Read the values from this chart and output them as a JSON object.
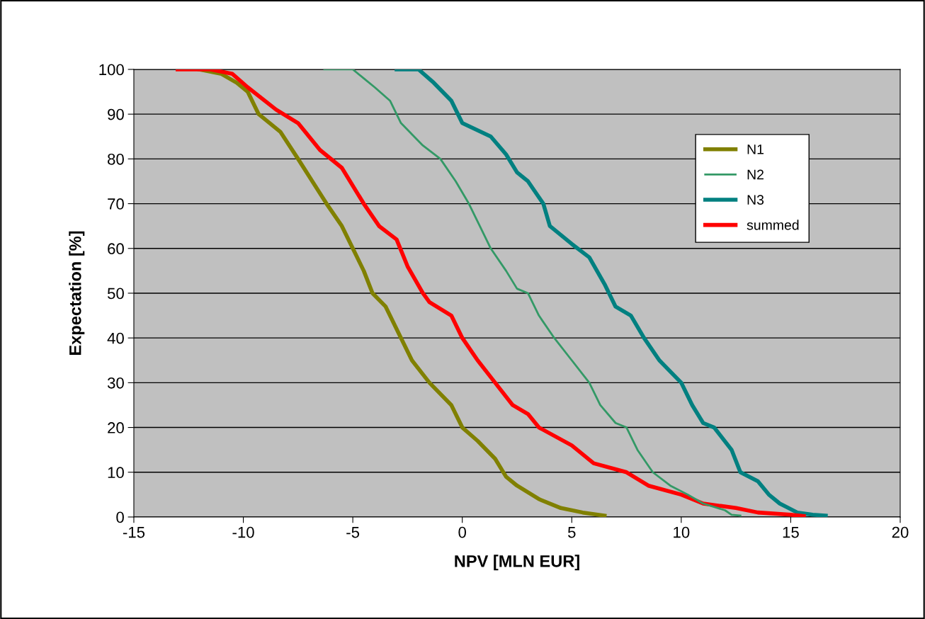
{
  "chart_data": {
    "type": "line",
    "xlabel": "NPV [MLN EUR]",
    "ylabel": "Expectation [%]",
    "xlim": [
      -15,
      20
    ],
    "xticks": [
      -15,
      -10,
      -5,
      0,
      5,
      10,
      15,
      20
    ],
    "ylim": [
      0,
      100
    ],
    "yticks": [
      0,
      10,
      20,
      30,
      40,
      50,
      60,
      70,
      80,
      90,
      100
    ],
    "grid": "y",
    "legend": "top right",
    "marker": "none",
    "line_style": "solid",
    "series": [
      {
        "name": "N1",
        "color": "#808000",
        "x": [
          -12,
          -11,
          -10.3,
          -9.8,
          -9.3,
          -8.3,
          -7.5,
          -6.2,
          -5.5,
          -5,
          -4.5,
          -4.1,
          -3.5,
          -2.8,
          -2.3,
          -1.5,
          -0.5,
          0,
          0.7,
          1.5,
          2,
          2.5,
          3.5,
          4.5,
          5.5,
          6.5
        ],
        "values": [
          100,
          99,
          97,
          95,
          90,
          86,
          80,
          70,
          65,
          60,
          55,
          50,
          47,
          40,
          35,
          30,
          25,
          20,
          17,
          13,
          9,
          7,
          4,
          2,
          1,
          0.3
        ]
      },
      {
        "name": "N2",
        "color": "#339966",
        "x": [
          -6.3,
          -5,
          -4.5,
          -4,
          -3.3,
          -2.8,
          -1.8,
          -1,
          -0.3,
          0.3,
          0.8,
          1.3,
          2,
          2.5,
          3,
          3.5,
          4.2,
          5,
          5.8,
          6.3,
          7,
          7.5,
          8,
          8.7,
          9.5,
          10.3,
          11,
          12,
          12.3,
          12.7
        ],
        "values": [
          100,
          100,
          98,
          96,
          93,
          88,
          83,
          80,
          75,
          70,
          65,
          60,
          55,
          51,
          50,
          45,
          40,
          35,
          30,
          25,
          21,
          20,
          15,
          10,
          7,
          5,
          3,
          1.5,
          0.5,
          0.3
        ]
      },
      {
        "name": "N3",
        "color": "#008080",
        "x": [
          -3,
          -2,
          -1.3,
          -0.5,
          0,
          1.3,
          2,
          2.5,
          3,
          3.7,
          4,
          5,
          5.8,
          6.5,
          7,
          7.7,
          8.3,
          9,
          10,
          10.5,
          11,
          11.5,
          12.3,
          12.7,
          13.5,
          14,
          14.5,
          15.3,
          16,
          16.6
        ],
        "values": [
          100,
          100,
          97,
          93,
          88,
          85,
          81,
          77,
          75,
          70,
          65,
          61,
          58,
          52,
          47,
          45,
          40,
          35,
          30,
          25,
          21,
          20,
          15,
          10,
          8,
          5,
          3,
          1,
          0.5,
          0.3
        ]
      },
      {
        "name": "summed",
        "color": "#ff0000",
        "x": [
          -13,
          -11.5,
          -10.5,
          -9.8,
          -8.5,
          -7.5,
          -6.5,
          -5.5,
          -4.5,
          -3.8,
          -3,
          -2.5,
          -1.8,
          -1.5,
          -0.5,
          0,
          0.7,
          1.5,
          2.3,
          3,
          3.5,
          5,
          6,
          7.5,
          8.5,
          10,
          11,
          12.5,
          13.5,
          15,
          15.6
        ],
        "values": [
          100,
          100,
          99,
          96,
          91,
          88,
          82,
          78,
          70,
          65,
          62,
          56,
          50,
          48,
          45,
          40,
          35,
          30,
          25,
          23,
          20,
          16,
          12,
          10,
          7,
          5,
          3,
          2,
          1,
          0.5,
          0.2
        ]
      }
    ]
  }
}
